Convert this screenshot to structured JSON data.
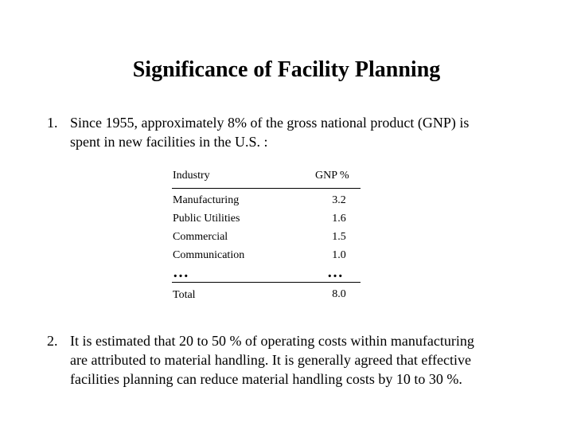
{
  "title": "Significance of Facility Planning",
  "point1": {
    "number": "1.",
    "lines": [
      "Since 1955, approximately 8% of the gross national product (GNP) is",
      "spent in new facilities in the U.S. :"
    ]
  },
  "table": {
    "headers": {
      "industry": "Industry",
      "gnp": "GNP %"
    },
    "rows": [
      {
        "industry": "Manufacturing",
        "gnp": "3.2"
      },
      {
        "industry": "Public Utilities",
        "gnp": "1.6"
      },
      {
        "industry": "Commercial",
        "gnp": "1.5"
      },
      {
        "industry": "Communication",
        "gnp": "1.0"
      }
    ],
    "ellipsis": "…",
    "total": {
      "label": "Total",
      "value": "8.0"
    }
  },
  "point2": {
    "number": "2.",
    "lines": [
      "It is estimated that 20 to 50 % of operating costs within manufacturing",
      "are attributed to material handling. It is generally agreed that effective",
      "facilities planning  can reduce material handling costs by 10 to 30 %."
    ]
  }
}
